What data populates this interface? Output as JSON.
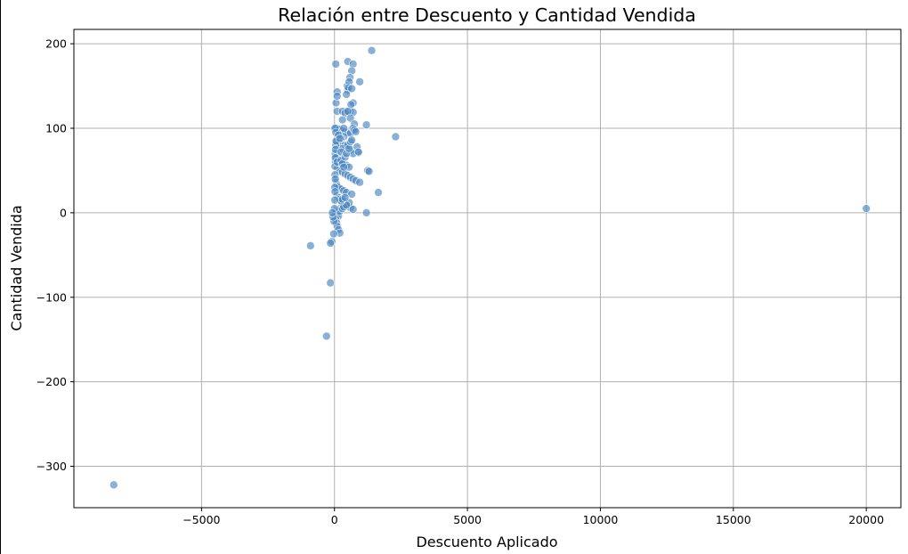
{
  "chart_data": {
    "type": "scatter",
    "title": "Relación entre Descuento y Cantidad Vendida",
    "xlabel": "Descuento Aplicado",
    "ylabel": "Cantidad Vendida",
    "xlim": [
      -9800,
      21300
    ],
    "ylim": [
      -349,
      217
    ],
    "x_ticks": [
      -5000,
      0,
      5000,
      10000,
      15000,
      20000
    ],
    "x_tick_labels": [
      "−5000",
      "0",
      "5000",
      "10000",
      "15000",
      "20000"
    ],
    "y_ticks": [
      -300,
      -200,
      -100,
      0,
      100,
      200
    ],
    "y_tick_labels": [
      "−300",
      "−200",
      "−100",
      "0",
      "100",
      "200"
    ],
    "grid": true,
    "point_color": "#4a86c2",
    "point_alpha": 0.65,
    "series": [
      {
        "x": [
          -8300,
          20000,
          -900,
          -300,
          -150,
          -100,
          -150,
          50,
          100,
          1400,
          500,
          480,
          700,
          650,
          580,
          950,
          550,
          60,
          100,
          500,
          520,
          450,
          650,
          700,
          580,
          420,
          620,
          700,
          100,
          300,
          400,
          500,
          600,
          750,
          1200,
          2300,
          60,
          150,
          200,
          300,
          400,
          500,
          600,
          350,
          250,
          150,
          80,
          200,
          400,
          450,
          300,
          600,
          900,
          700,
          100,
          80,
          60,
          150,
          250,
          350,
          450,
          550,
          120,
          200,
          300,
          400,
          500,
          600,
          700,
          800,
          60,
          80,
          100,
          150,
          250,
          350,
          450,
          650,
          1250,
          1300,
          950,
          1650,
          100,
          150,
          200,
          250,
          300,
          400,
          500,
          600,
          700,
          80,
          120,
          180,
          250,
          350,
          450,
          550,
          60,
          100,
          150,
          200,
          300,
          350,
          450,
          1200,
          50,
          80,
          100,
          150,
          200,
          250,
          300,
          400,
          30,
          40,
          50,
          20,
          30,
          10,
          20,
          10,
          0,
          -20,
          -50,
          -80,
          -30,
          20,
          50,
          60,
          40,
          30,
          20,
          300,
          350,
          150,
          200,
          250,
          100,
          250,
          300,
          350,
          400,
          450,
          500,
          550,
          600,
          650,
          700,
          750,
          800,
          850,
          900
        ],
        "y": [
          -322,
          5,
          -39,
          -146,
          -83,
          -34,
          -36,
          176,
          143,
          192,
          179,
          150,
          176,
          168,
          160,
          155,
          155,
          130,
          138,
          145,
          148,
          140,
          147,
          130,
          120,
          120,
          128,
          119,
          120,
          120,
          118,
          120,
          112,
          105,
          104,
          90,
          100,
          98,
          99,
          97,
          96,
          95,
          94,
          90,
          88,
          86,
          84,
          82,
          80,
          78,
          76,
          74,
          71,
          70,
          68,
          66,
          64,
          62,
          60,
          58,
          56,
          54,
          52,
          50,
          48,
          46,
          44,
          42,
          40,
          38,
          36,
          34,
          32,
          30,
          28,
          26,
          24,
          22,
          50,
          49,
          36,
          24,
          20,
          18,
          16,
          14,
          12,
          10,
          8,
          6,
          4,
          3,
          2,
          4,
          6,
          8,
          10,
          12,
          0,
          -2,
          -4,
          2,
          5,
          7,
          9,
          0,
          -8,
          -12,
          -16,
          -20,
          -24,
          14,
          16,
          18,
          70,
          60,
          80,
          45,
          40,
          30,
          25,
          15,
          5,
          -10,
          -5,
          0,
          -25,
          100,
          95,
          85,
          75,
          65,
          55,
          110,
          100,
          92,
          88,
          72,
          60,
          62,
          58,
          54,
          66,
          70,
          80,
          76,
          84,
          86,
          100,
          98,
          96,
          78,
          72
        ]
      }
    ]
  }
}
